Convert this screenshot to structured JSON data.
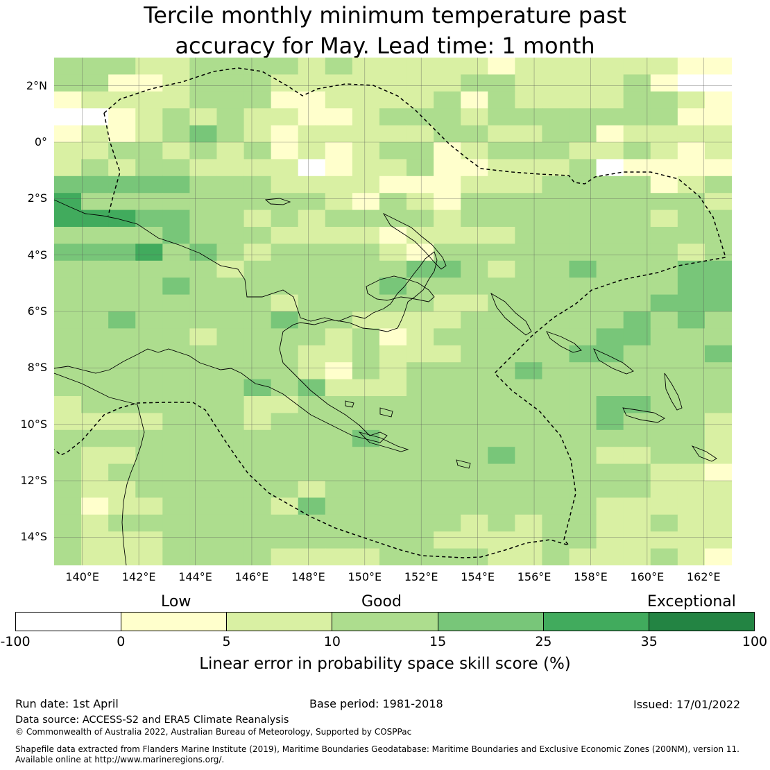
{
  "title": {
    "line1": "Tercile monthly minimum temperature past",
    "line2": "accuracy for May. Lead time: 1 month"
  },
  "map": {
    "lat_labels": [
      "2°N",
      "0°",
      "2°S",
      "4°S",
      "6°S",
      "8°S",
      "10°S",
      "12°S",
      "14°S"
    ],
    "lon_labels": [
      "140°E",
      "142°E",
      "144°E",
      "146°E",
      "148°E",
      "150°E",
      "152°E",
      "154°E",
      "156°E",
      "158°E",
      "160°E",
      "162°E"
    ],
    "extent": {
      "lon_min": 139,
      "lon_max": 163,
      "lat_min": -15,
      "lat_max": 3
    },
    "grid": "on",
    "cell_classes": [
      "3332233332322222122222211",
      "3311233322222223322223100",
      "1222233311222231322223321",
      "0012323221123332333333311",
      "1212343212222233223312222",
      "2233232312123312333223212",
      "2323322220122311222301111",
      "4444433322221112223333123",
      "5333333333213213333333332",
      "5554433232333323333333233",
      "3333433322221222233333333",
      "4445343233332133333333323",
      "3333332333333443233433344",
      "3333433333334333333333344",
      "3333333323333322333333444",
      "3343333343322223333334343",
      "3333323333231233333344333",
      "3333333332232223333443334",
      "3333333332132333343333333",
      "3333333434222333333333333",
      "2333333223333333333344333",
      "2222333233333333333343332",
      "3333333333343333333333332",
      "3223333333333333433322332",
      "3233333333333333333333221",
      "3223333332333333333333222",
      "3122333324333333333322222",
      "3233333333333332323322322",
      "3222333333333322223322222",
      "3222333322223333223222321"
    ]
  },
  "colorbar": {
    "category_labels": [
      "Low",
      "Good",
      "Exceptional"
    ],
    "ticks": [
      "-100",
      "0",
      "5",
      "10",
      "15",
      "25",
      "35",
      "100"
    ],
    "colors": [
      "#ffffff",
      "#ffffcc",
      "#d9f0a3",
      "#addd8e",
      "#78c679",
      "#41ab5d",
      "#238443"
    ],
    "label": "Linear error in probability space skill score (%)"
  },
  "footer": {
    "run_date": "Run date: 1st April",
    "base_period": "Base period: 1981-2018",
    "issued": "Issued: 17/01/2022",
    "data_source": "Data source: ACCESS-S2 and ERA5 Climate Reanalysis",
    "copyright": "© Commonwealth of Australia 2022, Australian Bureau of Meteorology, Supported by COSPPac",
    "shapefile_line1": "Shapefile data extracted from Flanders Marine Institute (2019), Maritime Boundaries Geodatabase: Maritime Boundaries and Exclusive Economic Zones (200NM), version 11.",
    "shapefile_line2": "Available online at http://www.marineregions.org/."
  }
}
